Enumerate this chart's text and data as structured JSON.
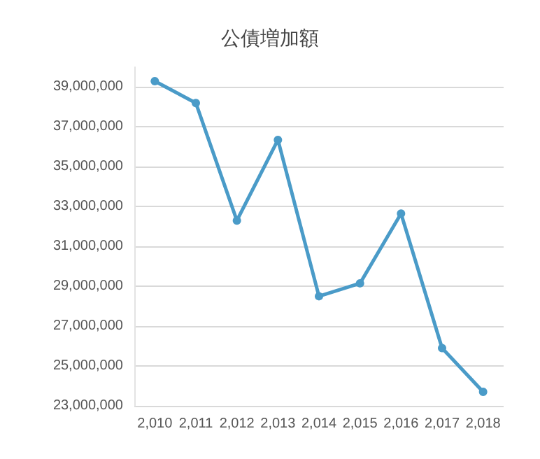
{
  "chart_data": {
    "type": "line",
    "title": "公債増加額",
    "categories": [
      "2,010",
      "2,011",
      "2,012",
      "2,013",
      "2,014",
      "2,015",
      "2,016",
      "2,017",
      "2,018"
    ],
    "series": [
      {
        "color": "#4a9bc8",
        "values": [
          39300000,
          38200000,
          32300000,
          36350000,
          28500000,
          29150000,
          32650000,
          25900000,
          23700000
        ]
      }
    ],
    "ylim": [
      23000000,
      40000000
    ],
    "yticks": [
      {
        "value": 23000000,
        "label": "23,000,000"
      },
      {
        "value": 25000000,
        "label": "25,000,000"
      },
      {
        "value": 27000000,
        "label": "27,000,000"
      },
      {
        "value": 29000000,
        "label": "29,000,000"
      },
      {
        "value": 31000000,
        "label": "31,000,000"
      },
      {
        "value": 33000000,
        "label": "33,000,000"
      },
      {
        "value": 35000000,
        "label": "35,000,000"
      },
      {
        "value": 37000000,
        "label": "37,000,000"
      },
      {
        "value": 39000000,
        "label": "39,000,000"
      }
    ],
    "grid": "y",
    "marker": "circle",
    "line_style": "solid"
  }
}
